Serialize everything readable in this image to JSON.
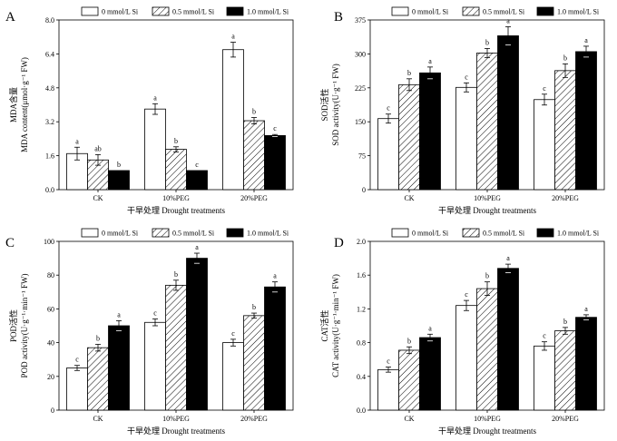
{
  "figure": {
    "legend": [
      {
        "label": "0 mmol/L Si",
        "fill": "white"
      },
      {
        "label": "0.5 mmol/L Si",
        "fill": "hatch"
      },
      {
        "label": "1.0 mmol/L Si",
        "fill": "black"
      }
    ],
    "xlabel": "干旱处理  Drought treatments",
    "colors": {
      "bar_edge": "#000000",
      "dark_fill": "#000000",
      "light_fill": "#ffffff"
    }
  },
  "chart_data": [
    {
      "type": "bar",
      "panel": "A",
      "ylabel_cn": "MDA含量",
      "ylabel_en": "MDA content(μmol·g⁻¹ FW)",
      "categories": [
        "CK",
        "10%PEG",
        "20%PEG"
      ],
      "ylim": [
        0,
        8.0
      ],
      "yticks": [
        0.0,
        1.6,
        3.2,
        4.8,
        6.4,
        8.0
      ],
      "ytick_labels": [
        "0.0",
        "1.6",
        "3.2",
        "4.8",
        "6.4",
        "8.0"
      ],
      "series": [
        {
          "name": "0 mmol/L Si",
          "values": [
            1.7,
            3.8,
            6.6
          ],
          "errors": [
            0.3,
            0.25,
            0.35
          ],
          "letters": [
            "a",
            "a",
            "a"
          ]
        },
        {
          "name": "0.5 mmol/L Si",
          "values": [
            1.4,
            1.9,
            3.25
          ],
          "errors": [
            0.25,
            0.12,
            0.15
          ],
          "letters": [
            "ab",
            "b",
            "b"
          ]
        },
        {
          "name": "1.0 mmol/L Si",
          "values": [
            0.9,
            0.9,
            2.55
          ],
          "errors": [
            0.0,
            0.0,
            0.05
          ],
          "letters": [
            "b",
            "c",
            "c"
          ]
        }
      ]
    },
    {
      "type": "bar",
      "panel": "B",
      "ylabel_cn": "SOD活性",
      "ylabel_en": "SOD activity(U·g⁻¹ FW)",
      "categories": [
        "CK",
        "10%PEG",
        "20%PEG"
      ],
      "ylim": [
        0,
        375
      ],
      "yticks": [
        0,
        75,
        150,
        225,
        300,
        375
      ],
      "ytick_labels": [
        "0",
        "75",
        "150",
        "225",
        "300",
        "375"
      ],
      "series": [
        {
          "name": "0 mmol/L Si",
          "values": [
            157,
            226,
            199
          ],
          "errors": [
            10,
            10,
            12
          ],
          "letters": [
            "c",
            "c",
            "c"
          ]
        },
        {
          "name": "0.5 mmol/L Si",
          "values": [
            232,
            302,
            263
          ],
          "errors": [
            13,
            10,
            15
          ],
          "letters": [
            "b",
            "b",
            "b"
          ]
        },
        {
          "name": "1.0 mmol/L Si",
          "values": [
            258,
            340,
            305
          ],
          "errors": [
            13,
            20,
            12
          ],
          "letters": [
            "a",
            "a",
            "a"
          ]
        }
      ]
    },
    {
      "type": "bar",
      "panel": "C",
      "ylabel_cn": "POD活性",
      "ylabel_en": "POD activity(U·g⁻¹·min⁻¹ FW)",
      "categories": [
        "CK",
        "10%PEG",
        "20%PEG"
      ],
      "ylim": [
        0,
        100
      ],
      "yticks": [
        0,
        20,
        40,
        60,
        80,
        100
      ],
      "ytick_labels": [
        "0",
        "20",
        "40",
        "60",
        "80",
        "100"
      ],
      "series": [
        {
          "name": "0 mmol/L Si",
          "values": [
            25,
            52,
            40
          ],
          "errors": [
            1.5,
            2,
            2
          ],
          "letters": [
            "c",
            "c",
            "c"
          ]
        },
        {
          "name": "0.5 mmol/L Si",
          "values": [
            37,
            74,
            56
          ],
          "errors": [
            2,
            3,
            1.5
          ],
          "letters": [
            "b",
            "b",
            "b"
          ]
        },
        {
          "name": "1.0 mmol/L Si",
          "values": [
            50,
            90,
            73
          ],
          "errors": [
            3,
            3,
            3
          ],
          "letters": [
            "a",
            "a",
            "a"
          ]
        }
      ]
    },
    {
      "type": "bar",
      "panel": "D",
      "ylabel_cn": "CAT活性",
      "ylabel_en": "CAT activity(U·g⁻¹·min⁻¹ FW)",
      "categories": [
        "CK",
        "10%PEG",
        "20%PEG"
      ],
      "ylim": [
        0,
        2.0
      ],
      "yticks": [
        0.0,
        0.4,
        0.8,
        1.2,
        1.6,
        2.0
      ],
      "ytick_labels": [
        "0.0",
        "0.4",
        "0.8",
        "1.2",
        "1.6",
        "2.0"
      ],
      "series": [
        {
          "name": "0 mmol/L Si",
          "values": [
            0.48,
            1.24,
            0.76
          ],
          "errors": [
            0.03,
            0.06,
            0.05
          ],
          "letters": [
            "c",
            "c",
            "c"
          ]
        },
        {
          "name": "0.5 mmol/L Si",
          "values": [
            0.71,
            1.44,
            0.94
          ],
          "errors": [
            0.04,
            0.08,
            0.04
          ],
          "letters": [
            "b",
            "b",
            "b"
          ]
        },
        {
          "name": "1.0 mmol/L Si",
          "values": [
            0.86,
            1.68,
            1.1
          ],
          "errors": [
            0.04,
            0.05,
            0.03
          ],
          "letters": [
            "a",
            "a",
            "a"
          ]
        }
      ]
    }
  ]
}
